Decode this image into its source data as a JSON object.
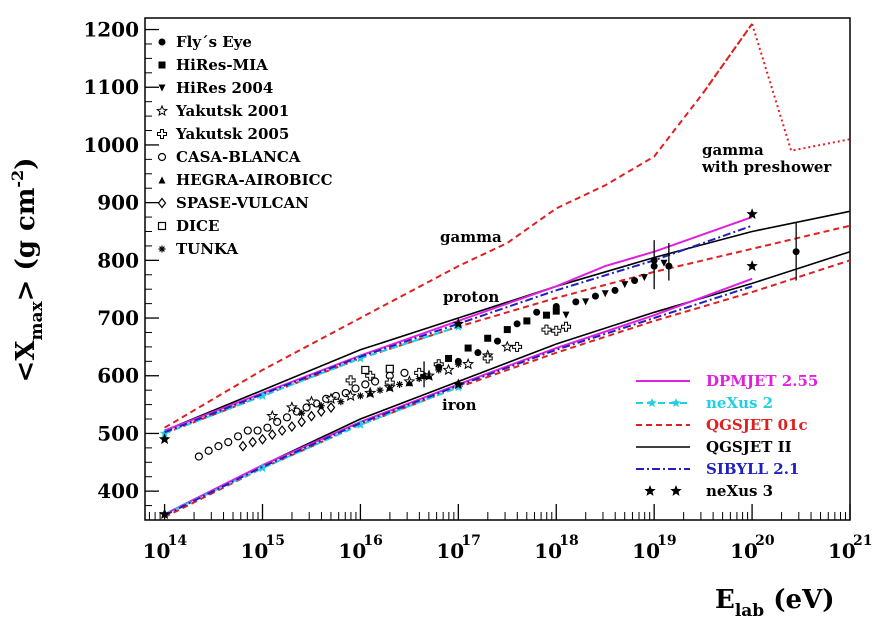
{
  "chart_data": {
    "type": "line",
    "title": "",
    "xlabel": {
      "main": "E",
      "sub": "lab",
      "unit": " (eV)"
    },
    "ylabel": {
      "open": "<X",
      "sub": "max",
      "mid": "> (g cm",
      "sup": "-2",
      "close": ")"
    },
    "xscale": "log10",
    "xlim": [
      13.8,
      21
    ],
    "ylim": [
      350,
      1220
    ],
    "xticks": [
      {
        "exp": 14,
        "base": "10",
        "label": "14"
      },
      {
        "exp": 15,
        "base": "10",
        "label": "15"
      },
      {
        "exp": 16,
        "base": "10",
        "label": "16"
      },
      {
        "exp": 17,
        "base": "10",
        "label": "17"
      },
      {
        "exp": 18,
        "base": "10",
        "label": "18"
      },
      {
        "exp": 19,
        "base": "10",
        "label": "19"
      },
      {
        "exp": 20,
        "base": "10",
        "label": "20"
      },
      {
        "exp": 21,
        "base": "10",
        "label": "21"
      }
    ],
    "yticks": [
      400,
      500,
      600,
      700,
      800,
      900,
      1000,
      1100,
      1200
    ],
    "experiment_legend": [
      {
        "marker": "filled-circle",
        "label": "Fly´s Eye"
      },
      {
        "marker": "filled-square",
        "label": "HiRes-MIA"
      },
      {
        "marker": "filled-triangle-down",
        "label": "HiRes 2004"
      },
      {
        "marker": "open-star",
        "label": "Yakutsk 2001"
      },
      {
        "marker": "open-cross",
        "label": "Yakutsk 2005"
      },
      {
        "marker": "open-circle",
        "label": "CASA-BLANCA"
      },
      {
        "marker": "filled-triangle-up",
        "label": "HEGRA-AIROBICC"
      },
      {
        "marker": "open-diamond",
        "label": "SPASE-VULCAN"
      },
      {
        "marker": "open-square",
        "label": "DICE"
      },
      {
        "marker": "asterisk",
        "label": "TUNKA"
      }
    ],
    "model_legend": [
      {
        "label": "DPMJET 2.55",
        "color": "#e020e0",
        "style": "solid",
        "textColor": "#e020e0"
      },
      {
        "label": "neXus 2",
        "color": "#20d0e0",
        "style": "dashed-star",
        "textColor": "#20d0e0"
      },
      {
        "label": "QGSJET 01c",
        "color": "#e02020",
        "style": "dashed",
        "textColor": "#e02020"
      },
      {
        "label": "QGSJET II",
        "color": "#000000",
        "style": "solid",
        "textColor": "#000000"
      },
      {
        "label": "SIBYLL 2.1",
        "color": "#2020c0",
        "style": "dashdot",
        "textColor": "#2020c0"
      },
      {
        "label": "neXus 3",
        "color": "#000000",
        "style": "stars",
        "textColor": "#000000"
      }
    ],
    "annotations": {
      "gamma": "gamma",
      "proton": "proton",
      "iron": "iron",
      "preshower_line1": "gamma",
      "preshower_line2": "with preshower"
    },
    "series": [
      {
        "name": "QGSJET 01c gamma",
        "color": "#e02020",
        "style": "dashed",
        "x": [
          14,
          15,
          16,
          17,
          17.5,
          18,
          18.5,
          19,
          19.5,
          20
        ],
        "y": [
          510,
          610,
          700,
          790,
          830,
          890,
          930,
          980,
          1090,
          1210
        ]
      },
      {
        "name": "QGSJET 01c gamma with preshower",
        "color": "#e02020",
        "style": "dotted",
        "x": [
          19.5,
          20,
          20.4,
          21
        ],
        "y": [
          1090,
          1210,
          990,
          1010
        ]
      },
      {
        "name": "QGSJET II proton",
        "color": "#000000",
        "style": "solid",
        "x": [
          14,
          15,
          16,
          17,
          18,
          19,
          20,
          21
        ],
        "y": [
          505,
          575,
          645,
          700,
          755,
          805,
          850,
          885
        ]
      },
      {
        "name": "QGSJET 01c proton",
        "color": "#e02020",
        "style": "dashed",
        "x": [
          14,
          15,
          16,
          17,
          18,
          19,
          20,
          21
        ],
        "y": [
          500,
          565,
          630,
          685,
          735,
          780,
          820,
          860
        ]
      },
      {
        "name": "DPMJET 2.55 proton",
        "color": "#e020e0",
        "style": "solid",
        "x": [
          14,
          15,
          16,
          17,
          18,
          18.5,
          19,
          20
        ],
        "y": [
          505,
          570,
          635,
          695,
          755,
          790,
          815,
          875
        ]
      },
      {
        "name": "neXus 2 proton",
        "color": "#20d0e0",
        "style": "dashed-star",
        "x": [
          14,
          15,
          16,
          17
        ],
        "y": [
          500,
          565,
          630,
          685
        ]
      },
      {
        "name": "SIBYLL 2.1 proton",
        "color": "#2020c0",
        "style": "dashdot",
        "x": [
          14,
          15,
          16,
          17,
          18,
          19,
          20
        ],
        "y": [
          502,
          568,
          633,
          690,
          748,
          800,
          860
        ]
      },
      {
        "name": "QGSJET II iron",
        "color": "#000000",
        "style": "solid",
        "x": [
          14,
          15,
          16,
          17,
          18,
          19,
          20,
          21
        ],
        "y": [
          360,
          445,
          525,
          590,
          655,
          710,
          760,
          815
        ]
      },
      {
        "name": "QGSJET 01c iron",
        "color": "#e02020",
        "style": "dashed",
        "x": [
          14,
          15,
          16,
          17,
          18,
          19,
          20,
          21
        ],
        "y": [
          355,
          440,
          515,
          580,
          640,
          695,
          745,
          800
        ]
      },
      {
        "name": "DPMJET 2.55 iron",
        "color": "#e020e0",
        "style": "solid",
        "x": [
          14,
          15,
          16,
          17,
          18,
          19,
          20
        ],
        "y": [
          360,
          445,
          520,
          585,
          648,
          705,
          768
        ]
      },
      {
        "name": "neXus 2 iron",
        "color": "#20d0e0",
        "style": "dashed-star",
        "x": [
          14,
          15,
          16,
          17
        ],
        "y": [
          360,
          440,
          515,
          580
        ]
      },
      {
        "name": "SIBYLL 2.1 iron",
        "color": "#2020c0",
        "style": "dashdot",
        "x": [
          14,
          15,
          16,
          17,
          18,
          19,
          20
        ],
        "y": [
          358,
          442,
          518,
          583,
          645,
          700,
          755
        ]
      }
    ],
    "nexus3_points": [
      {
        "x": 14,
        "y": 490
      },
      {
        "x": 17,
        "y": 690
      },
      {
        "x": 20,
        "y": 880
      },
      {
        "x": 14,
        "y": 360
      },
      {
        "x": 17,
        "y": 585
      },
      {
        "x": 20,
        "y": 790
      }
    ],
    "measurements": [
      {
        "marker": "open-circle",
        "points": [
          [
            14.35,
            460
          ],
          [
            14.45,
            470
          ],
          [
            14.55,
            478
          ],
          [
            14.65,
            485
          ],
          [
            14.75,
            495
          ],
          [
            14.85,
            505
          ],
          [
            14.95,
            505
          ],
          [
            15.05,
            510
          ],
          [
            15.15,
            520
          ],
          [
            15.25,
            528
          ],
          [
            15.35,
            538
          ],
          [
            15.45,
            545
          ],
          [
            15.55,
            552
          ],
          [
            15.65,
            560
          ],
          [
            15.75,
            565
          ],
          [
            15.85,
            570
          ],
          [
            15.95,
            578
          ],
          [
            16.05,
            585
          ],
          [
            16.15,
            590
          ],
          [
            16.3,
            600
          ],
          [
            16.45,
            605
          ]
        ]
      },
      {
        "marker": "open-diamond",
        "points": [
          [
            14.8,
            478
          ],
          [
            14.9,
            485
          ],
          [
            15.0,
            490
          ],
          [
            15.1,
            498
          ],
          [
            15.2,
            505
          ],
          [
            15.3,
            512
          ],
          [
            15.4,
            520
          ],
          [
            15.5,
            530
          ],
          [
            15.6,
            538
          ],
          [
            15.7,
            545
          ]
        ]
      },
      {
        "marker": "open-star",
        "points": [
          [
            15.1,
            530
          ],
          [
            15.3,
            545
          ],
          [
            15.5,
            555
          ],
          [
            15.7,
            560
          ],
          [
            15.9,
            565
          ],
          [
            16.1,
            570
          ],
          [
            16.3,
            580
          ],
          [
            16.5,
            590
          ],
          [
            16.7,
            600
          ],
          [
            16.9,
            610
          ],
          [
            17.1,
            620
          ],
          [
            17.3,
            635
          ],
          [
            17.5,
            650
          ]
        ]
      },
      {
        "marker": "asterisk",
        "points": [
          [
            15.4,
            535
          ],
          [
            15.6,
            548
          ],
          [
            15.8,
            555
          ],
          [
            16.0,
            565
          ],
          [
            16.2,
            575
          ],
          [
            16.4,
            585
          ],
          [
            16.6,
            595
          ],
          [
            16.8,
            610
          ],
          [
            17.0,
            620
          ]
        ]
      },
      {
        "marker": "open-cross",
        "points": [
          [
            15.9,
            592
          ],
          [
            16.1,
            600
          ],
          [
            16.3,
            588
          ],
          [
            16.6,
            605
          ],
          [
            16.8,
            620
          ],
          [
            17.3,
            630
          ],
          [
            17.6,
            650
          ],
          [
            17.9,
            680
          ],
          [
            18.0,
            678
          ],
          [
            18.1,
            685
          ]
        ]
      },
      {
        "marker": "filled-triangle-up",
        "points": [
          [
            16.1,
            570
          ],
          [
            16.3,
            580
          ],
          [
            16.5,
            588
          ],
          [
            16.7,
            600
          ]
        ]
      },
      {
        "marker": "filled-circle",
        "points": [
          [
            16.8,
            615
          ],
          [
            17.0,
            625
          ],
          [
            17.2,
            640
          ],
          [
            17.4,
            660
          ],
          [
            17.6,
            690
          ],
          [
            17.8,
            710
          ],
          [
            18.0,
            720
          ],
          [
            18.2,
            728
          ],
          [
            18.4,
            738
          ],
          [
            18.6,
            748
          ],
          [
            18.8,
            765
          ],
          [
            19.0,
            790
          ]
        ]
      },
      {
        "marker": "filled-square",
        "points": [
          [
            16.9,
            630
          ],
          [
            17.1,
            648
          ],
          [
            17.3,
            665
          ],
          [
            17.5,
            680
          ],
          [
            17.7,
            695
          ],
          [
            17.9,
            705
          ],
          [
            18.0,
            712
          ]
        ]
      },
      {
        "marker": "filled-triangle-down",
        "points": [
          [
            18.1,
            705
          ],
          [
            18.3,
            728
          ],
          [
            18.5,
            742
          ],
          [
            18.7,
            758
          ],
          [
            18.9,
            770
          ],
          [
            19.1,
            795
          ]
        ]
      },
      {
        "marker": "open-square",
        "points": [
          [
            16.05,
            610
          ],
          [
            16.3,
            612
          ]
        ]
      }
    ],
    "error_bars": [
      {
        "x": 19.0,
        "y": 800,
        "lo": 750,
        "hi": 835
      },
      {
        "x": 19.15,
        "y": 790,
        "lo": 765,
        "hi": 830
      },
      {
        "x": 20.45,
        "y": 815,
        "lo": 765,
        "hi": 865
      },
      {
        "x": 16.65,
        "y": 600,
        "lo": 580,
        "hi": 625
      }
    ]
  }
}
